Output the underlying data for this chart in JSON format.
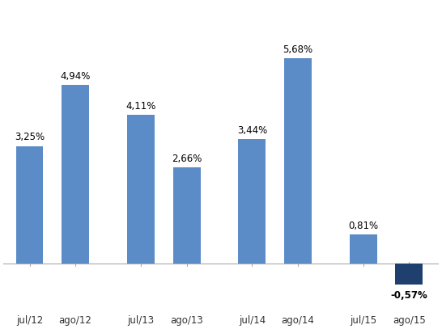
{
  "categories": [
    "jul/12",
    "ago/12",
    "jul/13",
    "ago/13",
    "jul/14",
    "ago/14",
    "jul/15",
    "ago/15"
  ],
  "values": [
    3.25,
    4.94,
    4.11,
    2.66,
    3.44,
    5.68,
    0.81,
    -0.57
  ],
  "labels": [
    "3,25%",
    "4,94%",
    "4,11%",
    "2,66%",
    "3,44%",
    "5,68%",
    "0,81%",
    "-0,57%"
  ],
  "bar_colors": [
    "#5b8cc8",
    "#5b8cc8",
    "#5b8cc8",
    "#5b8cc8",
    "#5b8cc8",
    "#5b8cc8",
    "#5b8cc8",
    "#1f3f6e"
  ],
  "background_color": "#ffffff",
  "label_fontsize": 8.5,
  "tick_fontsize": 8.5,
  "ylim": [
    -1.2,
    7.2
  ],
  "figsize": [
    5.46,
    4.07
  ],
  "dpi": 100,
  "x_positions": [
    0,
    0.7,
    1.7,
    2.4,
    3.4,
    4.1,
    5.1,
    5.8
  ],
  "bar_width": 0.42
}
